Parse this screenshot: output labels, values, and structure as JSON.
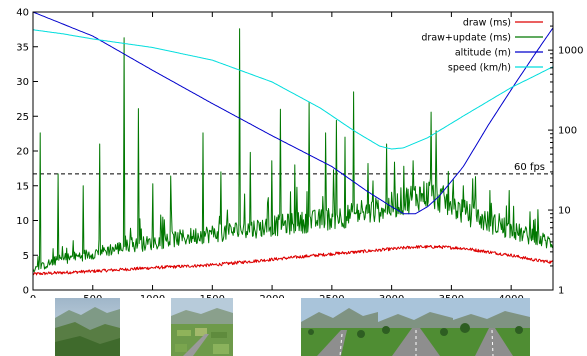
{
  "chart_data": {
    "type": "line",
    "title": "",
    "xlabel": "",
    "ylabel": "",
    "y2label": "",
    "xlim": [
      0,
      4350
    ],
    "ylim": [
      0,
      40
    ],
    "y2lim": [
      1,
      3000
    ],
    "y2_scale": "log",
    "x_ticks": [
      0,
      500,
      1000,
      1500,
      2000,
      2500,
      3000,
      3500,
      4000
    ],
    "y_ticks": [
      0,
      5,
      10,
      15,
      20,
      25,
      30,
      35,
      40
    ],
    "y2_ticks": [
      1,
      10,
      100,
      1000
    ],
    "grid": false,
    "legend_position": "top-right",
    "reference_line": {
      "label": "60 fps",
      "y": 16.7,
      "style": "dashed"
    },
    "series": [
      {
        "name": "draw (ms)",
        "axis": "left",
        "color": "#dd0000",
        "x": [
          0,
          500,
          1000,
          1500,
          2000,
          2500,
          2800,
          3000,
          3200,
          3400,
          3600,
          3800,
          4000,
          4200,
          4350
        ],
        "y": [
          2.3,
          2.7,
          3.2,
          3.6,
          4.4,
          5.2,
          5.6,
          5.9,
          6.2,
          6.2,
          6.0,
          5.5,
          5.0,
          4.3,
          4.0
        ]
      },
      {
        "name": "draw+update (ms)",
        "axis": "left",
        "color": "#007700",
        "x": [
          0,
          80,
          200,
          400,
          600,
          800,
          1000,
          1200,
          1400,
          1600,
          1800,
          2000,
          2200,
          2400,
          2600,
          2800,
          3000,
          3100,
          3200,
          3300,
          3400,
          3500,
          3600,
          3800,
          4000,
          4200,
          4350
        ],
        "y": [
          2.8,
          3.2,
          4.0,
          4.6,
          5.3,
          5.9,
          6.4,
          6.9,
          7.4,
          7.8,
          8.2,
          8.6,
          9.0,
          9.4,
          9.9,
          10.4,
          11.3,
          12.0,
          12.6,
          13.0,
          12.4,
          11.4,
          10.5,
          9.2,
          8.0,
          7.0,
          6.3
        ],
        "spikes": [
          {
            "x": 60,
            "y": 22.6
          },
          {
            "x": 210,
            "y": 16.7
          },
          {
            "x": 420,
            "y": 15.0
          },
          {
            "x": 560,
            "y": 21.0
          },
          {
            "x": 760,
            "y": 36.3
          },
          {
            "x": 880,
            "y": 26.1
          },
          {
            "x": 1000,
            "y": 15.3
          },
          {
            "x": 1150,
            "y": 16.4
          },
          {
            "x": 1420,
            "y": 22.6
          },
          {
            "x": 1570,
            "y": 17.0
          },
          {
            "x": 1730,
            "y": 37.6
          },
          {
            "x": 1820,
            "y": 19.8
          },
          {
            "x": 2000,
            "y": 18.6
          },
          {
            "x": 2070,
            "y": 26.0
          },
          {
            "x": 2190,
            "y": 18.0
          },
          {
            "x": 2310,
            "y": 27.0
          },
          {
            "x": 2450,
            "y": 22.6
          },
          {
            "x": 2540,
            "y": 24.4
          },
          {
            "x": 2610,
            "y": 22.0
          },
          {
            "x": 2680,
            "y": 28.5
          },
          {
            "x": 2800,
            "y": 18.2
          },
          {
            "x": 2960,
            "y": 21.0
          },
          {
            "x": 3100,
            "y": 17.8
          },
          {
            "x": 3180,
            "y": 18.6
          },
          {
            "x": 3330,
            "y": 25.6
          },
          {
            "x": 3370,
            "y": 22.9
          },
          {
            "x": 3600,
            "y": 15.0
          },
          {
            "x": 3900,
            "y": 11.0
          },
          {
            "x": 4200,
            "y": 10.2
          }
        ]
      },
      {
        "name": "altitude (m)",
        "axis": "right",
        "color": "#0000cc",
        "x": [
          0,
          500,
          1000,
          1500,
          2000,
          2500,
          2800,
          3000,
          3100,
          3200,
          3300,
          3400,
          3600,
          3800,
          4000,
          4200,
          4350
        ],
        "y": [
          3000,
          1500,
          560,
          215,
          85,
          35,
          17,
          11,
          9,
          9,
          11,
          15,
          35,
          110,
          320,
          900,
          1900
        ]
      },
      {
        "name": "speed (km/h)",
        "axis": "right",
        "color": "#00dddd",
        "x": [
          0,
          250,
          500,
          1000,
          1500,
          2000,
          2400,
          2700,
          2900,
          3000,
          3100,
          3300,
          3600,
          4000,
          4350
        ],
        "y": [
          1800,
          1600,
          1380,
          1080,
          750,
          400,
          190,
          95,
          63,
          58,
          60,
          80,
          150,
          340,
          620
        ]
      }
    ]
  },
  "thumbnails": [
    {
      "scene": "mountain-valley-aerial-high"
    },
    {
      "scene": "farmland-with-runway-aerial"
    },
    {
      "scene": "runway-approach-mountains"
    },
    {
      "scene": "runway-centerline-trees"
    },
    {
      "scene": "runway-on-ground-trees"
    }
  ]
}
